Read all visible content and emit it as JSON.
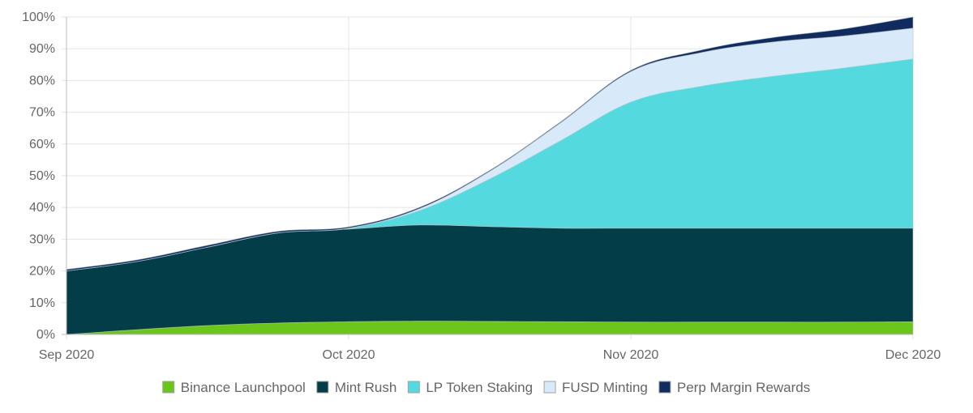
{
  "chart_data": {
    "type": "area",
    "stacked": true,
    "y_format": "percent",
    "x_ticks": [
      "Sep 2020",
      "Oct 2020",
      "Nov 2020",
      "Dec 2020"
    ],
    "y_ticks": [
      "0%",
      "10%",
      "20%",
      "30%",
      "40%",
      "50%",
      "60%",
      "70%",
      "80%",
      "90%",
      "100%"
    ],
    "ylim": [
      0,
      100
    ],
    "grid": true,
    "legend_position": "bottom",
    "x": [
      0,
      0.25,
      0.5,
      0.75,
      1.0,
      1.25,
      1.5,
      1.75,
      2.0,
      2.25,
      2.5,
      2.75,
      3.0
    ],
    "series": [
      {
        "name": "Binance Launchpool",
        "color": "#6cc51a",
        "values": [
          0,
          1.5,
          2.8,
          3.6,
          4.0,
          4.2,
          4.1,
          4.0,
          3.9,
          3.9,
          3.9,
          3.9,
          4.0
        ]
      },
      {
        "name": "Mint Rush",
        "color": "#023d48",
        "values": [
          20,
          21.5,
          24.7,
          28.4,
          29.2,
          30.3,
          29.9,
          29.5,
          29.6,
          29.6,
          29.6,
          29.6,
          29.5
        ]
      },
      {
        "name": "LP Token Staking",
        "color": "#54d9df",
        "values": [
          0,
          0,
          0,
          0,
          0.2,
          4.5,
          15.0,
          27.5,
          39.7,
          44.7,
          47.8,
          50.4,
          53.3
        ]
      },
      {
        "name": "FUSD Minting",
        "color": "#d8eafa",
        "values": [
          0,
          0,
          0,
          0,
          0.1,
          0.6,
          2.4,
          5.6,
          9.6,
          10.6,
          10.8,
          10.1,
          9.7
        ]
      },
      {
        "name": "Perp Margin Rewards",
        "color": "#112b5e",
        "values": [
          0.5,
          0.5,
          0.6,
          0.5,
          0.4,
          0.4,
          0.3,
          0.3,
          0.4,
          0.8,
          1.4,
          2.2,
          3.5
        ]
      }
    ]
  }
}
